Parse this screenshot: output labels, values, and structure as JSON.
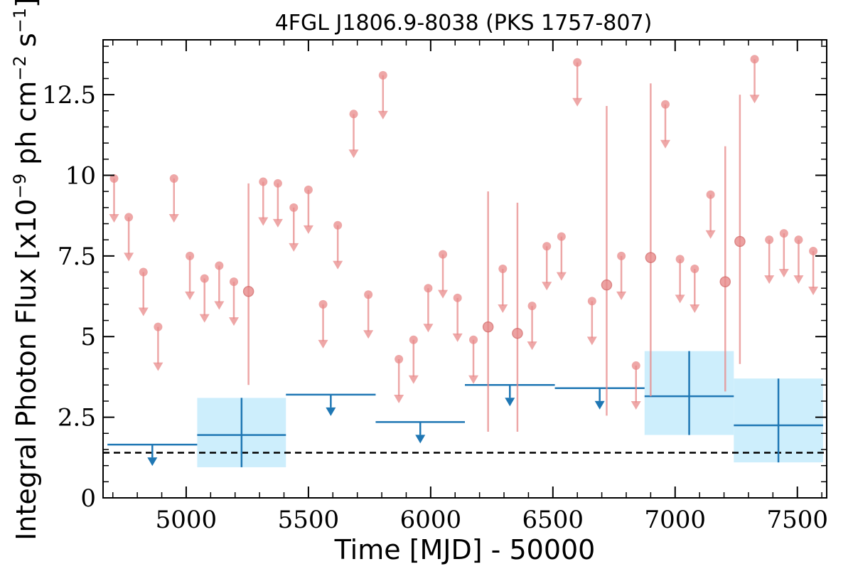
{
  "chart_data": {
    "type": "scatter",
    "title": "4FGL J1806.9-8038 (PKS 1757-807)",
    "xlabel": "Time [MJD] - 50000",
    "ylabel": "Integral Photon Flux [x10",
    "ylabel_exp1": "−9",
    "ylabel_mid": " ph cm",
    "ylabel_exp2": "−2",
    "ylabel_mid2": " s",
    "ylabel_exp3": "−1",
    "ylabel_end": "]",
    "xlim": [
      4660,
      7620
    ],
    "ylim": [
      0,
      14.2
    ],
    "x_ticks": [
      5000,
      5500,
      6000,
      6500,
      7000,
      7500
    ],
    "x_tick_labels": [
      "5000",
      "5500",
      "6000",
      "6500",
      "7000",
      "7500"
    ],
    "y_ticks": [
      0,
      2.5,
      5,
      7.5,
      10,
      12.5
    ],
    "y_tick_labels": [
      "0",
      "2.5",
      "5",
      "7.5",
      "10",
      "12.5"
    ],
    "reference_line": 1.4,
    "colors": {
      "fine": "#e88a8a",
      "coarse": "#1f77b4",
      "coarse_fill": "#cdeefc",
      "reference": "#000000"
    },
    "fine_upper_limits": [
      [
        4705,
        9.9
      ],
      [
        4765,
        8.7
      ],
      [
        4825,
        7.0
      ],
      [
        4885,
        5.3
      ],
      [
        4950,
        9.9
      ],
      [
        5015,
        7.5
      ],
      [
        5075,
        6.8
      ],
      [
        5135,
        7.2
      ],
      [
        5195,
        6.7
      ],
      [
        5315,
        9.8
      ],
      [
        5375,
        9.75
      ],
      [
        5440,
        9.0
      ],
      [
        5500,
        9.55
      ],
      [
        5560,
        6.0
      ],
      [
        5620,
        8.45
      ],
      [
        5685,
        11.9
      ],
      [
        5745,
        6.3
      ],
      [
        5805,
        13.1
      ],
      [
        5870,
        4.3
      ],
      [
        5930,
        4.9
      ],
      [
        5990,
        6.5
      ],
      [
        6050,
        7.55
      ],
      [
        6110,
        6.2
      ],
      [
        6175,
        4.9
      ],
      [
        6295,
        7.1
      ],
      [
        6415,
        5.95
      ],
      [
        6475,
        7.8
      ],
      [
        6535,
        8.1
      ],
      [
        6600,
        13.5
      ],
      [
        6660,
        6.1
      ],
      [
        6780,
        7.5
      ],
      [
        6840,
        4.1
      ],
      [
        6960,
        12.2
      ],
      [
        7020,
        7.4
      ],
      [
        7080,
        7.1
      ],
      [
        7145,
        9.4
      ],
      [
        7325,
        13.6
      ],
      [
        7385,
        8.0
      ],
      [
        7445,
        8.2
      ],
      [
        7505,
        8.0
      ],
      [
        7565,
        7.65
      ]
    ],
    "fine_detections": [
      [
        5255,
        6.4,
        3.5,
        9.75
      ],
      [
        6235,
        5.3,
        2.05,
        9.5
      ],
      [
        6355,
        5.1,
        2.05,
        9.15
      ],
      [
        6720,
        6.6,
        2.55,
        12.15
      ],
      [
        6900,
        7.45,
        3.15,
        12.85
      ],
      [
        7205,
        6.7,
        3.3,
        10.9
      ],
      [
        7265,
        7.95,
        4.15,
        12.5
      ]
    ],
    "coarse_upper_limits": [
      [
        4678,
        5045,
        1.65
      ],
      [
        5408,
        5775,
        3.2
      ],
      [
        5775,
        6140,
        2.35
      ],
      [
        6140,
        6508,
        3.5
      ],
      [
        6508,
        6875,
        3.4
      ]
    ],
    "coarse_detections": [
      [
        5045,
        5408,
        1.95,
        0.95,
        3.1
      ],
      [
        6875,
        7240,
        3.15,
        1.95,
        4.55
      ],
      [
        7240,
        7605,
        2.25,
        1.1,
        3.7
      ]
    ]
  }
}
